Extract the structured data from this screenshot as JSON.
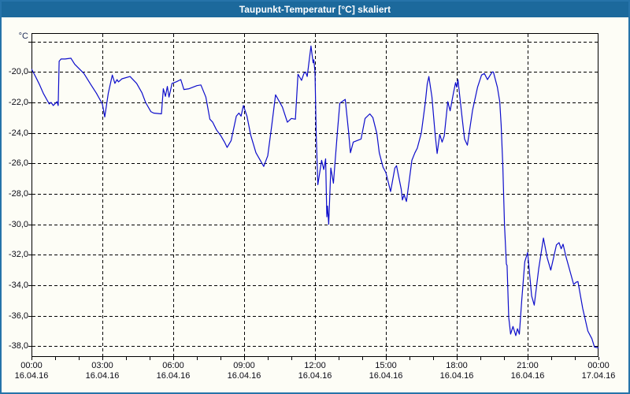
{
  "window": {
    "title": "Taupunkt-Temperatur [°C] skaliert"
  },
  "chart": {
    "y_unit": "°C"
  },
  "colors": {
    "titlebar_bg": "#1c699c",
    "titlebar_text": "#ffffff",
    "window_border": "#2673a9",
    "background": "#fdfdf6",
    "line": "#0d0dcb",
    "grid": "#000000",
    "label": "#0a0a14"
  },
  "chart_data": {
    "type": "line",
    "title": "Taupunkt-Temperatur [°C] skaliert",
    "series_name": "Taupunkt-Temperatur",
    "grid": true,
    "legend": "none",
    "x_axis": {
      "kind": "time",
      "hours_span": 24,
      "major_tick_hours": 3,
      "minor_tick_hours": 1,
      "ticks": [
        {
          "hour": 0,
          "time": "00:00",
          "date": "16.04.16"
        },
        {
          "hour": 3,
          "time": "03:00",
          "date": "16.04.16"
        },
        {
          "hour": 6,
          "time": "06:00",
          "date": "16.04.16"
        },
        {
          "hour": 9,
          "time": "09:00",
          "date": "16.04.16"
        },
        {
          "hour": 12,
          "time": "12:00",
          "date": "16.04.16"
        },
        {
          "hour": 15,
          "time": "15:00",
          "date": "16.04.16"
        },
        {
          "hour": 18,
          "time": "18:00",
          "date": "16.04.16"
        },
        {
          "hour": 21,
          "time": "21:00",
          "date": "16.04.16"
        },
        {
          "hour": 24,
          "time": "00:00",
          "date": "17.04.16"
        }
      ]
    },
    "y_axis": {
      "unit": "°C",
      "min": -38.7,
      "max": -17.45,
      "gridlines": [
        -18,
        -20,
        -22,
        -24,
        -26,
        -28,
        -30,
        -32,
        -34,
        -36,
        -38
      ],
      "ticks": [
        {
          "value": -20,
          "label": "-20,0"
        },
        {
          "value": -22,
          "label": "-22,0"
        },
        {
          "value": -24,
          "label": "-24,0"
        },
        {
          "value": -26,
          "label": "-26,0"
        },
        {
          "value": -28,
          "label": "-28,0"
        },
        {
          "value": -30,
          "label": "-30,0"
        },
        {
          "value": -32,
          "label": "-32,0"
        },
        {
          "value": -34,
          "label": "-34,0"
        },
        {
          "value": -36,
          "label": "-36,0"
        },
        {
          "value": -38,
          "label": "-38,0"
        }
      ]
    },
    "points": [
      [
        0.0,
        -19.8
      ],
      [
        0.17,
        -20.3
      ],
      [
        0.33,
        -20.8
      ],
      [
        0.5,
        -21.4
      ],
      [
        0.75,
        -22.1
      ],
      [
        0.83,
        -22.0
      ],
      [
        0.92,
        -22.2
      ],
      [
        1.08,
        -21.95
      ],
      [
        1.13,
        -22.2
      ],
      [
        1.17,
        -19.3
      ],
      [
        1.25,
        -19.15
      ],
      [
        1.42,
        -19.15
      ],
      [
        1.67,
        -19.1
      ],
      [
        1.83,
        -19.5
      ],
      [
        2.22,
        -20.1
      ],
      [
        2.5,
        -20.8
      ],
      [
        2.75,
        -21.4
      ],
      [
        3.0,
        -22.1
      ],
      [
        3.1,
        -22.95
      ],
      [
        3.25,
        -21.4
      ],
      [
        3.42,
        -20.2
      ],
      [
        3.53,
        -20.75
      ],
      [
        3.62,
        -20.5
      ],
      [
        3.68,
        -20.65
      ],
      [
        3.83,
        -20.45
      ],
      [
        4.17,
        -20.3
      ],
      [
        4.45,
        -20.75
      ],
      [
        4.67,
        -21.35
      ],
      [
        4.83,
        -22.0
      ],
      [
        5.05,
        -22.6
      ],
      [
        5.17,
        -22.7
      ],
      [
        5.5,
        -22.75
      ],
      [
        5.58,
        -21.1
      ],
      [
        5.67,
        -21.6
      ],
      [
        5.75,
        -20.95
      ],
      [
        5.82,
        -21.65
      ],
      [
        5.95,
        -20.75
      ],
      [
        6.12,
        -20.65
      ],
      [
        6.32,
        -20.5
      ],
      [
        6.45,
        -21.15
      ],
      [
        6.67,
        -21.1
      ],
      [
        7.0,
        -20.9
      ],
      [
        7.17,
        -20.85
      ],
      [
        7.38,
        -21.65
      ],
      [
        7.55,
        -23.1
      ],
      [
        7.67,
        -23.3
      ],
      [
        7.83,
        -23.8
      ],
      [
        8.0,
        -24.15
      ],
      [
        8.17,
        -24.6
      ],
      [
        8.28,
        -24.95
      ],
      [
        8.45,
        -24.5
      ],
      [
        8.67,
        -22.9
      ],
      [
        8.78,
        -22.7
      ],
      [
        8.87,
        -22.9
      ],
      [
        8.97,
        -22.2
      ],
      [
        9.12,
        -22.9
      ],
      [
        9.28,
        -24.15
      ],
      [
        9.5,
        -25.3
      ],
      [
        9.83,
        -26.2
      ],
      [
        10.0,
        -25.5
      ],
      [
        10.17,
        -23.5
      ],
      [
        10.33,
        -21.5
      ],
      [
        10.62,
        -22.3
      ],
      [
        10.83,
        -23.3
      ],
      [
        11.0,
        -23.05
      ],
      [
        11.17,
        -23.1
      ],
      [
        11.28,
        -20.15
      ],
      [
        11.43,
        -20.55
      ],
      [
        11.53,
        -20.1
      ],
      [
        11.6,
        -20.0
      ],
      [
        11.67,
        -20.3
      ],
      [
        11.83,
        -18.3
      ],
      [
        11.92,
        -19.4
      ],
      [
        11.95,
        -19.2
      ],
      [
        12.0,
        -20.0
      ],
      [
        12.05,
        -24.0
      ],
      [
        12.12,
        -27.4
      ],
      [
        12.28,
        -25.8
      ],
      [
        12.37,
        -26.4
      ],
      [
        12.45,
        -25.7
      ],
      [
        12.5,
        -29.5
      ],
      [
        12.53,
        -28.8
      ],
      [
        12.58,
        -30.0
      ],
      [
        12.67,
        -26.3
      ],
      [
        12.78,
        -27.3
      ],
      [
        12.95,
        -23.9
      ],
      [
        13.05,
        -22.05
      ],
      [
        13.28,
        -21.8
      ],
      [
        13.42,
        -23.9
      ],
      [
        13.5,
        -25.3
      ],
      [
        13.62,
        -24.6
      ],
      [
        13.95,
        -24.4
      ],
      [
        14.12,
        -23.05
      ],
      [
        14.32,
        -22.75
      ],
      [
        14.45,
        -23.0
      ],
      [
        14.62,
        -24.05
      ],
      [
        14.72,
        -25.3
      ],
      [
        14.88,
        -26.25
      ],
      [
        15.0,
        -26.6
      ],
      [
        15.2,
        -27.85
      ],
      [
        15.38,
        -26.3
      ],
      [
        15.45,
        -26.15
      ],
      [
        15.65,
        -27.7
      ],
      [
        15.7,
        -28.4
      ],
      [
        15.77,
        -28.05
      ],
      [
        15.87,
        -28.5
      ],
      [
        16.0,
        -27.0
      ],
      [
        16.1,
        -25.8
      ],
      [
        16.23,
        -25.3
      ],
      [
        16.33,
        -25.0
      ],
      [
        16.5,
        -24.0
      ],
      [
        16.67,
        -22.0
      ],
      [
        16.75,
        -20.8
      ],
      [
        16.82,
        -20.3
      ],
      [
        16.95,
        -21.65
      ],
      [
        17.08,
        -24.0
      ],
      [
        17.17,
        -25.35
      ],
      [
        17.28,
        -24.1
      ],
      [
        17.38,
        -24.6
      ],
      [
        17.47,
        -24.2
      ],
      [
        17.62,
        -21.95
      ],
      [
        17.72,
        -22.55
      ],
      [
        17.87,
        -21.3
      ],
      [
        17.95,
        -20.7
      ],
      [
        18.0,
        -21.0
      ],
      [
        18.05,
        -20.5
      ],
      [
        18.22,
        -22.9
      ],
      [
        18.33,
        -24.4
      ],
      [
        18.45,
        -24.8
      ],
      [
        18.67,
        -22.5
      ],
      [
        18.88,
        -21.0
      ],
      [
        19.05,
        -20.2
      ],
      [
        19.17,
        -20.1
      ],
      [
        19.3,
        -20.5
      ],
      [
        19.5,
        -20.0
      ],
      [
        19.55,
        -20.0
      ],
      [
        19.72,
        -21.0
      ],
      [
        19.82,
        -21.95
      ],
      [
        19.88,
        -23.5
      ],
      [
        19.95,
        -26.15
      ],
      [
        20.02,
        -30.0
      ],
      [
        20.1,
        -32.6
      ],
      [
        20.13,
        -32.7
      ],
      [
        20.2,
        -36.1
      ],
      [
        20.28,
        -37.2
      ],
      [
        20.38,
        -36.7
      ],
      [
        20.5,
        -37.3
      ],
      [
        20.57,
        -36.85
      ],
      [
        20.65,
        -37.2
      ],
      [
        20.75,
        -35.0
      ],
      [
        20.88,
        -32.45
      ],
      [
        21.0,
        -31.85
      ],
      [
        21.17,
        -34.7
      ],
      [
        21.28,
        -35.3
      ],
      [
        21.47,
        -32.9
      ],
      [
        21.67,
        -30.9
      ],
      [
        21.83,
        -32.2
      ],
      [
        21.98,
        -33.0
      ],
      [
        22.22,
        -31.35
      ],
      [
        22.33,
        -31.2
      ],
      [
        22.42,
        -31.6
      ],
      [
        22.5,
        -31.3
      ],
      [
        22.62,
        -32.1
      ],
      [
        22.95,
        -33.95
      ],
      [
        23.05,
        -33.8
      ],
      [
        23.13,
        -33.75
      ],
      [
        23.33,
        -35.5
      ],
      [
        23.55,
        -37.0
      ],
      [
        23.72,
        -37.5
      ],
      [
        23.83,
        -38.05
      ],
      [
        24.0,
        -38.1
      ]
    ]
  }
}
